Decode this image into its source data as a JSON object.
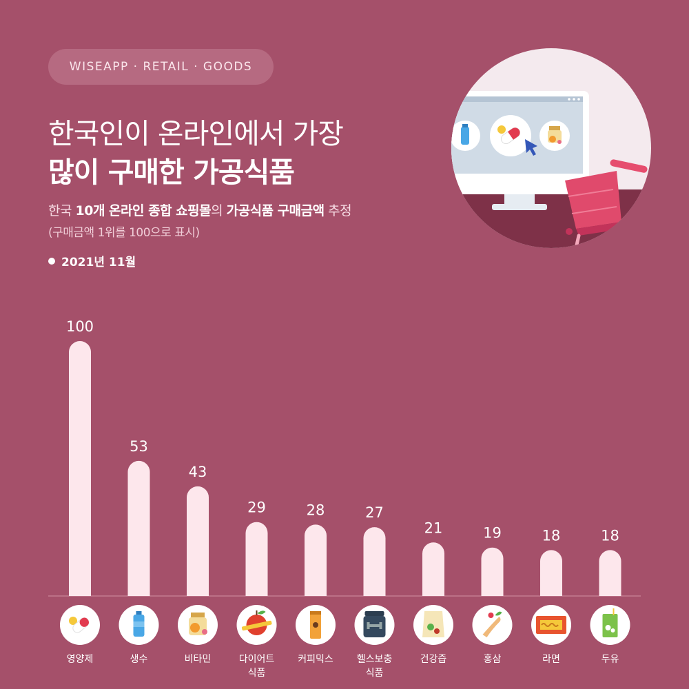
{
  "tag": "WISEAPP · RETAIL · GOODS",
  "title_line1": "한국인이 온라인에서 가장",
  "title_line2": "많이 구매한 가공식품",
  "subtitle": {
    "p1": "한국 ",
    "b1": "10개 온라인 종합 쇼핑몰",
    "p2": "의 ",
    "b2": "가공식품 구매금액",
    "p3": " 추정"
  },
  "note": "(구매금액 1위를 100으로 표시)",
  "date": "2021년 11월",
  "colors": {
    "background": "#a5506a",
    "bar": "#fde7ec",
    "pill": "#b66a81",
    "icon_circle": "#ffffff"
  },
  "chart_data": {
    "type": "bar",
    "categories": [
      "영양제",
      "생수",
      "비타민",
      "다이어트\n식품",
      "커피믹스",
      "헬스보충\n식품",
      "건강즙",
      "홍삼",
      "라면",
      "두유"
    ],
    "values": [
      100,
      53,
      43,
      29,
      28,
      27,
      21,
      19,
      18,
      18
    ],
    "ylim": [
      0,
      100
    ],
    "grid": false,
    "legend": "none",
    "icons": [
      "pill-icon",
      "water-bottle-icon",
      "vitamin-jar-icon",
      "diet-apple-icon",
      "coffee-stick-icon",
      "protein-tub-icon",
      "health-juice-pouch-icon",
      "red-ginseng-icon",
      "ramen-pack-icon",
      "soy-milk-carton-icon"
    ]
  }
}
